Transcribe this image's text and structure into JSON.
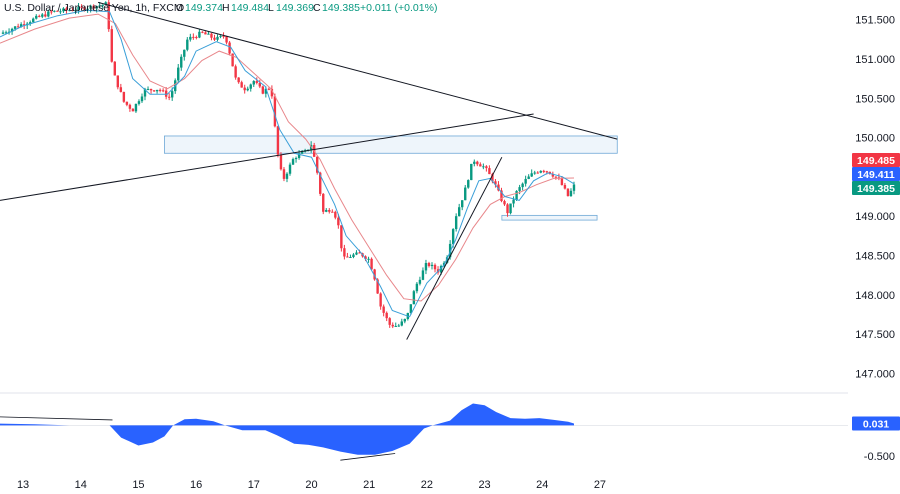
{
  "header": {
    "symbol": "U.S. Dollar / Japanese Yen, 1h, FXCM",
    "open_label": "O",
    "open": "149.374",
    "high_label": "H",
    "high": "149.484",
    "low_label": "L",
    "low": "149.369",
    "close_label": "C",
    "close": "149.385",
    "change": "+0.011 (+0.01%)"
  },
  "colors": {
    "up": "#089981",
    "down": "#f23645",
    "ma_fast": "#3a9fd8",
    "ma_slow": "#e8878b",
    "trendline": "#131722",
    "zone_fill": "#eef5fb",
    "zone_border": "#6ea8d6",
    "histogram": "#2962ff",
    "price_badge_red": "#f23645",
    "price_badge_blue": "#2962ff",
    "price_badge_green": "#089981",
    "indicator_badge": "#2962ff"
  },
  "price_badges": [
    {
      "label": "149.485",
      "value": 149.485,
      "color": "#f23645"
    },
    {
      "label": "149.411",
      "value": 149.411,
      "color": "#2962ff"
    },
    {
      "label": "149.385",
      "value": 149.385,
      "color": "#089981"
    }
  ],
  "indicator_badges": [
    {
      "label": "0.031",
      "value": 0.031,
      "color": "#2962ff"
    },
    {
      "label": "-0.500",
      "value": -0.5,
      "color": "#ffffff"
    }
  ],
  "chart_data": {
    "type": "candlestick",
    "xlim": [
      12.6,
      27.3
    ],
    "ylim": [
      146.75,
      151.75
    ],
    "x_ticks": [
      {
        "label": "13",
        "value": 13
      },
      {
        "label": "14",
        "value": 14
      },
      {
        "label": "15",
        "value": 15
      },
      {
        "label": "16",
        "value": 16
      },
      {
        "label": "17",
        "value": 17
      },
      {
        "label": "20",
        "value": 18
      },
      {
        "label": "21",
        "value": 19
      },
      {
        "label": "22",
        "value": 20
      },
      {
        "label": "23",
        "value": 21
      },
      {
        "label": "24",
        "value": 22
      },
      {
        "label": "27",
        "value": 23
      }
    ],
    "y_ticks": [
      {
        "label": "151.500",
        "value": 151.5
      },
      {
        "label": "151.000",
        "value": 151.0
      },
      {
        "label": "150.500",
        "value": 150.5
      },
      {
        "label": "150.000",
        "value": 150.0
      },
      {
        "label": "149.000",
        "value": 149.0
      },
      {
        "label": "148.500",
        "value": 148.5
      },
      {
        "label": "148.000",
        "value": 148.0
      },
      {
        "label": "147.500",
        "value": 147.5
      },
      {
        "label": "147.000",
        "value": 147.0
      }
    ],
    "price_path": [
      [
        12.6,
        151.32
      ],
      [
        13.0,
        151.45
      ],
      [
        13.5,
        151.6
      ],
      [
        14.0,
        151.64
      ],
      [
        14.45,
        151.7
      ],
      [
        14.55,
        150.85
      ],
      [
        14.75,
        150.45
      ],
      [
        14.9,
        150.35
      ],
      [
        15.1,
        150.6
      ],
      [
        15.35,
        150.62
      ],
      [
        15.55,
        150.5
      ],
      [
        15.7,
        150.9
      ],
      [
        15.85,
        151.25
      ],
      [
        16.1,
        151.33
      ],
      [
        16.35,
        151.25
      ],
      [
        16.5,
        151.3
      ],
      [
        16.55,
        151.18
      ],
      [
        16.7,
        150.7
      ],
      [
        16.85,
        150.62
      ],
      [
        17.0,
        150.72
      ],
      [
        17.15,
        150.58
      ],
      [
        17.3,
        150.65
      ],
      [
        17.4,
        149.85
      ],
      [
        17.5,
        149.45
      ],
      [
        17.7,
        149.75
      ],
      [
        17.9,
        149.82
      ],
      [
        18.0,
        149.92
      ],
      [
        18.1,
        149.55
      ],
      [
        18.2,
        149.05
      ],
      [
        18.35,
        149.1
      ],
      [
        18.45,
        148.95
      ],
      [
        18.55,
        148.45
      ],
      [
        18.7,
        148.5
      ],
      [
        18.85,
        148.52
      ],
      [
        19.0,
        148.45
      ],
      [
        19.1,
        148.2
      ],
      [
        19.2,
        147.85
      ],
      [
        19.35,
        147.62
      ],
      [
        19.5,
        147.6
      ],
      [
        19.65,
        147.7
      ],
      [
        19.8,
        148.1
      ],
      [
        20.0,
        148.4
      ],
      [
        20.2,
        148.3
      ],
      [
        20.35,
        148.5
      ],
      [
        20.5,
        149.0
      ],
      [
        20.65,
        149.3
      ],
      [
        20.8,
        149.72
      ],
      [
        21.0,
        149.62
      ],
      [
        21.15,
        149.45
      ],
      [
        21.3,
        149.2
      ],
      [
        21.4,
        149.05
      ],
      [
        21.55,
        149.3
      ],
      [
        21.7,
        149.45
      ],
      [
        21.85,
        149.55
      ],
      [
        22.0,
        149.6
      ],
      [
        22.15,
        149.55
      ],
      [
        22.3,
        149.45
      ],
      [
        22.45,
        149.25
      ],
      [
        22.55,
        149.385
      ]
    ],
    "ma_fast": [
      [
        12.6,
        151.28
      ],
      [
        13.0,
        151.42
      ],
      [
        13.6,
        151.55
      ],
      [
        14.1,
        151.62
      ],
      [
        14.5,
        151.6
      ],
      [
        14.7,
        151.25
      ],
      [
        14.9,
        150.75
      ],
      [
        15.2,
        150.55
      ],
      [
        15.5,
        150.55
      ],
      [
        15.8,
        150.78
      ],
      [
        16.0,
        151.1
      ],
      [
        16.35,
        151.22
      ],
      [
        16.6,
        151.15
      ],
      [
        16.85,
        150.85
      ],
      [
        17.2,
        150.65
      ],
      [
        17.45,
        150.1
      ],
      [
        17.7,
        149.8
      ],
      [
        18.0,
        149.75
      ],
      [
        18.2,
        149.45
      ],
      [
        18.4,
        149.15
      ],
      [
        18.6,
        148.75
      ],
      [
        18.9,
        148.5
      ],
      [
        19.2,
        148.1
      ],
      [
        19.4,
        147.8
      ],
      [
        19.7,
        147.72
      ],
      [
        20.0,
        148.15
      ],
      [
        20.3,
        148.38
      ],
      [
        20.5,
        148.7
      ],
      [
        20.7,
        149.1
      ],
      [
        20.9,
        149.45
      ],
      [
        21.1,
        149.48
      ],
      [
        21.35,
        149.25
      ],
      [
        21.6,
        149.2
      ],
      [
        21.85,
        149.45
      ],
      [
        22.1,
        149.55
      ],
      [
        22.35,
        149.5
      ],
      [
        22.55,
        149.411
      ]
    ],
    "ma_slow": [
      [
        12.6,
        151.2
      ],
      [
        13.2,
        151.38
      ],
      [
        13.8,
        151.52
      ],
      [
        14.3,
        151.57
      ],
      [
        14.6,
        151.45
      ],
      [
        14.9,
        151.05
      ],
      [
        15.2,
        150.72
      ],
      [
        15.5,
        150.62
      ],
      [
        15.8,
        150.75
      ],
      [
        16.1,
        150.98
      ],
      [
        16.4,
        151.1
      ],
      [
        16.7,
        151.02
      ],
      [
        17.0,
        150.82
      ],
      [
        17.3,
        150.62
      ],
      [
        17.6,
        150.2
      ],
      [
        17.9,
        149.98
      ],
      [
        18.15,
        149.72
      ],
      [
        18.4,
        149.35
      ],
      [
        18.7,
        148.95
      ],
      [
        19.0,
        148.6
      ],
      [
        19.3,
        148.25
      ],
      [
        19.6,
        147.95
      ],
      [
        19.9,
        147.92
      ],
      [
        20.2,
        148.12
      ],
      [
        20.5,
        148.45
      ],
      [
        20.8,
        148.85
      ],
      [
        21.1,
        149.15
      ],
      [
        21.35,
        149.25
      ],
      [
        21.6,
        149.3
      ],
      [
        21.9,
        149.4
      ],
      [
        22.2,
        149.48
      ],
      [
        22.55,
        149.485
      ]
    ],
    "trendlines": [
      {
        "from": [
          14.3,
          151.72
        ],
        "to": [
          23.3,
          149.98
        ]
      },
      {
        "from": [
          12.6,
          149.2
        ],
        "to": [
          21.85,
          150.3
        ]
      },
      {
        "from": [
          19.65,
          147.43
        ],
        "to": [
          21.3,
          149.75
        ]
      }
    ],
    "zones": [
      {
        "x": [
          15.45,
          23.3
        ],
        "y": [
          149.8,
          150.02
        ]
      },
      {
        "x": [
          21.3,
          22.95
        ],
        "y": [
          148.95,
          149.01
        ]
      }
    ],
    "oscillator": {
      "ylim": [
        -0.6,
        0.45
      ],
      "values": [
        [
          12.6,
          0.03
        ],
        [
          13.2,
          0.02
        ],
        [
          13.8,
          0.0
        ],
        [
          14.5,
          0.0
        ],
        [
          14.7,
          -0.2
        ],
        [
          15.0,
          -0.33
        ],
        [
          15.25,
          -0.28
        ],
        [
          15.45,
          -0.18
        ],
        [
          15.6,
          0.0
        ],
        [
          15.8,
          0.1
        ],
        [
          16.0,
          0.11
        ],
        [
          16.3,
          0.07
        ],
        [
          16.5,
          0.0
        ],
        [
          16.8,
          -0.08
        ],
        [
          17.2,
          -0.08
        ],
        [
          17.4,
          -0.16
        ],
        [
          17.7,
          -0.3
        ],
        [
          17.95,
          -0.32
        ],
        [
          18.2,
          -0.36
        ],
        [
          18.5,
          -0.43
        ],
        [
          18.8,
          -0.48
        ],
        [
          19.1,
          -0.48
        ],
        [
          19.4,
          -0.42
        ],
        [
          19.7,
          -0.3
        ],
        [
          19.95,
          -0.05
        ],
        [
          20.1,
          0.0
        ],
        [
          20.4,
          0.08
        ],
        [
          20.6,
          0.25
        ],
        [
          20.8,
          0.36
        ],
        [
          21.0,
          0.33
        ],
        [
          21.2,
          0.22
        ],
        [
          21.45,
          0.12
        ],
        [
          21.7,
          0.11
        ],
        [
          21.95,
          0.12
        ],
        [
          22.2,
          0.09
        ],
        [
          22.45,
          0.06
        ],
        [
          22.55,
          0.031
        ]
      ],
      "trendlines": [
        {
          "from": [
            12.6,
            0.14
          ],
          "to": [
            14.55,
            0.09
          ]
        },
        {
          "from": [
            18.5,
            -0.57
          ],
          "to": [
            19.45,
            -0.46
          ]
        }
      ]
    }
  }
}
